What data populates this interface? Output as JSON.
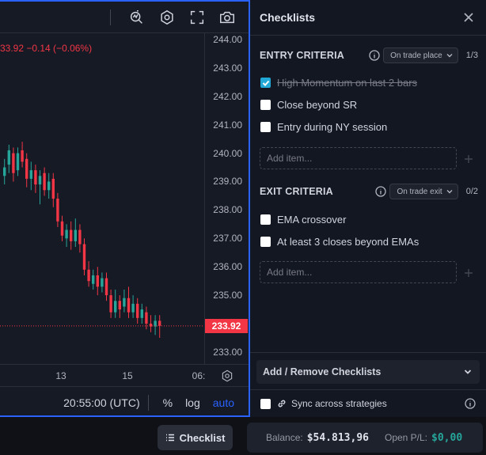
{
  "chart": {
    "ohlc_text": "33.92  −0.14 (−0.06%)",
    "price_labels": [
      "244.00",
      "243.00",
      "242.00",
      "241.00",
      "240.00",
      "239.00",
      "238.00",
      "237.00",
      "236.00",
      "235.00",
      "233.00"
    ],
    "current_price": "233.92",
    "time_labels": [
      "13",
      "15",
      "06:"
    ],
    "footer": {
      "time": "20:55:00 (UTC)",
      "percent": "%",
      "log": "log",
      "auto": "auto"
    },
    "toolbar_icons": [
      "indicator-search-icon",
      "settings-hexagon-icon",
      "fullscreen-icon",
      "camera-icon"
    ],
    "colors": {
      "up": "#26a69a",
      "down": "#f23645",
      "accent": "#2962ff"
    }
  },
  "checklists": {
    "title": "Checklists",
    "entry": {
      "title": "ENTRY CRITERIA",
      "trigger": "On trade place",
      "count": "1/3",
      "items": [
        {
          "label": "High Momentum on last 2 bars",
          "checked": true
        },
        {
          "label": "Close beyond SR",
          "checked": false
        },
        {
          "label": "Entry during NY session",
          "checked": false
        }
      ],
      "add_placeholder": "Add item..."
    },
    "exit": {
      "title": "EXIT CRITERIA",
      "trigger": "On trade exit",
      "count": "0/2",
      "items": [
        {
          "label": "EMA crossover",
          "checked": false
        },
        {
          "label": "At least 3 closes beyond EMAs",
          "checked": false
        }
      ],
      "add_placeholder": "Add item..."
    },
    "add_remove_label": "Add / Remove Checklists",
    "sync_label": "Sync across strategies"
  },
  "bottom": {
    "checklist_button": "Checklist",
    "balance_label": "Balance:",
    "balance_value": "$54.813,96",
    "open_pl_label": "Open P/L:",
    "open_pl_value": "$0,00"
  }
}
